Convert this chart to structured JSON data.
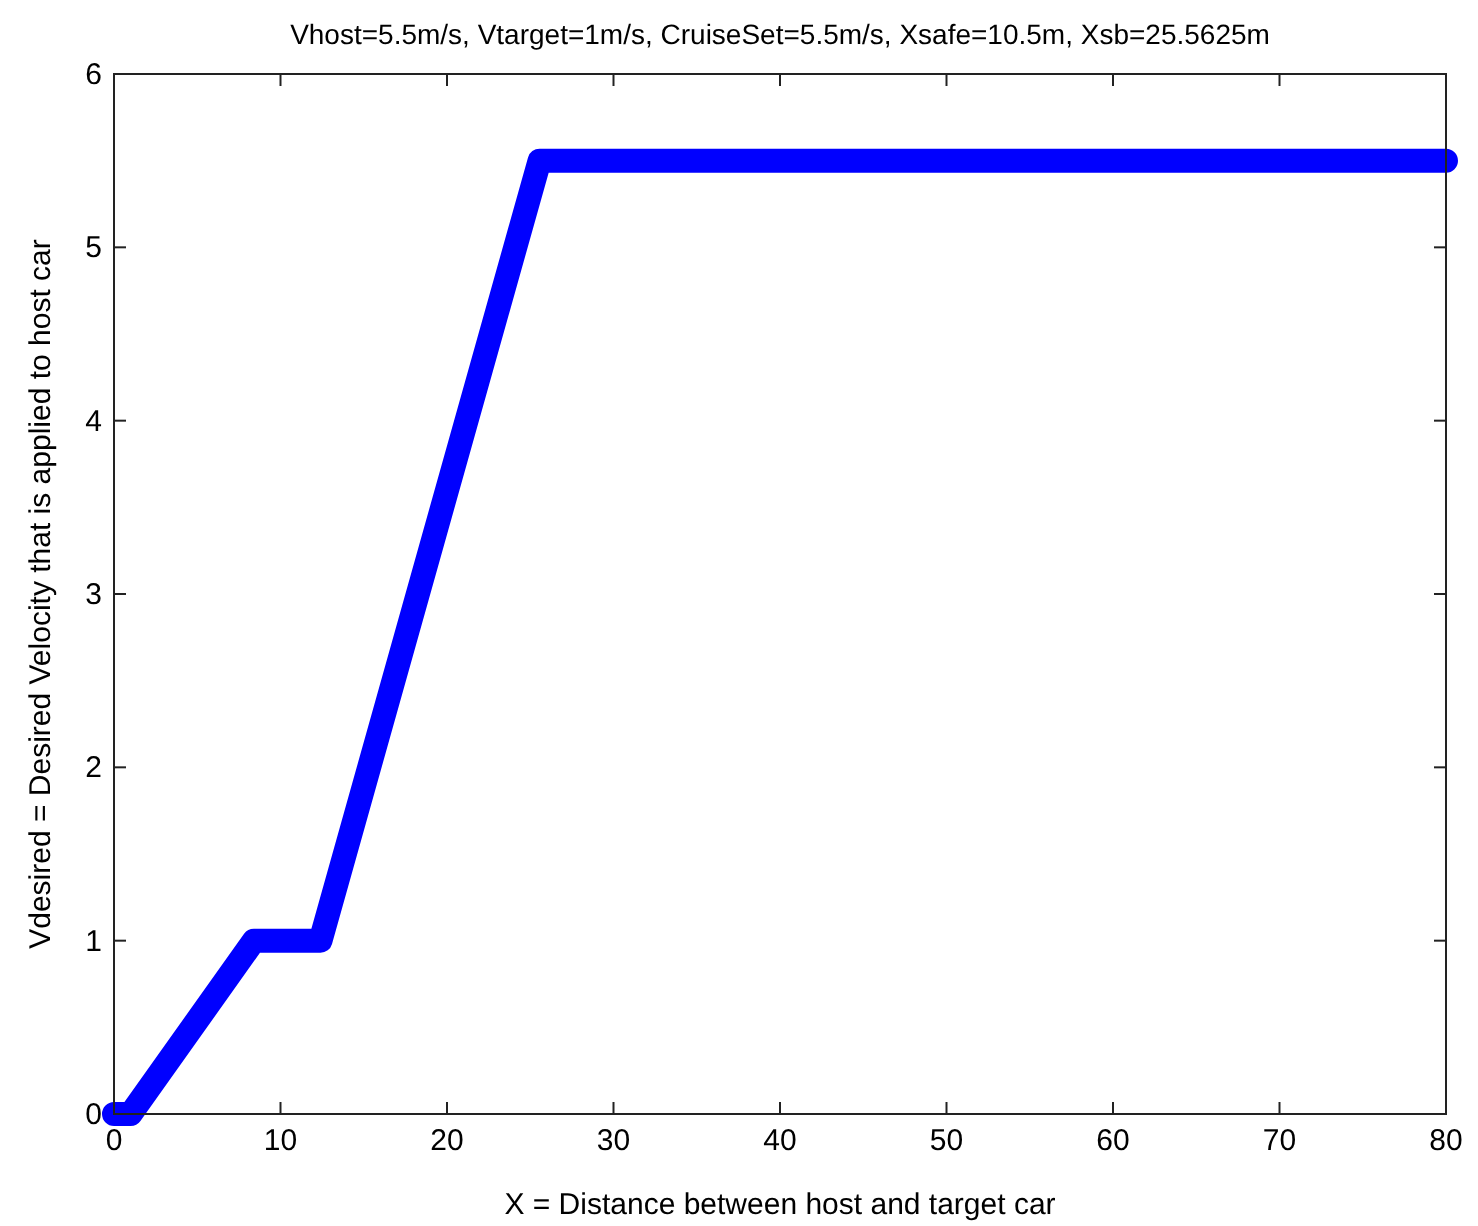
{
  "chart_data": {
    "type": "line",
    "title": "Vhost=5.5m/s, Vtarget=1m/s, CruiseSet=5.5m/s, Xsafe=10.5m, Xsb=25.5625m",
    "xlabel": "X = Distance between host and target car",
    "ylabel": "Vdesired = Desired Velocity that is applied to host car",
    "x": [
      0,
      1,
      8.4,
      12.4,
      25.56,
      80
    ],
    "series": [
      {
        "color": "#0000ff",
        "values": [
          0,
          0,
          1,
          1,
          5.5,
          5.5
        ]
      }
    ],
    "xlim": [
      0,
      80
    ],
    "xticks": [
      0,
      10,
      20,
      30,
      40,
      50,
      60,
      70,
      80
    ],
    "ylim": [
      0,
      6
    ],
    "yticks": [
      0,
      1,
      2,
      3,
      4,
      5,
      6
    ],
    "grid": false,
    "line_style": "solid",
    "marker": "none"
  }
}
